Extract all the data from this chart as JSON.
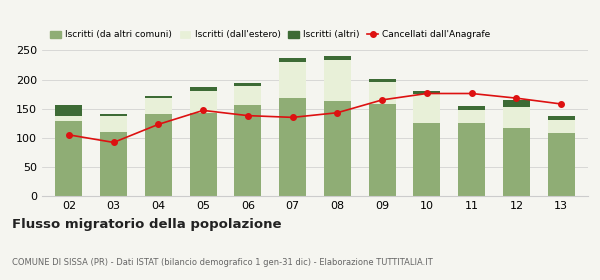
{
  "years": [
    "02",
    "03",
    "04",
    "05",
    "06",
    "07",
    "08",
    "09",
    "10",
    "11",
    "12",
    "13"
  ],
  "iscritti_altri_comuni": [
    128,
    110,
    140,
    142,
    156,
    168,
    163,
    158,
    125,
    125,
    117,
    108
  ],
  "iscritti_estero": [
    10,
    28,
    28,
    38,
    33,
    62,
    70,
    38,
    50,
    22,
    35,
    22
  ],
  "iscritti_altri": [
    18,
    2,
    4,
    8,
    5,
    7,
    8,
    5,
    5,
    7,
    12,
    8
  ],
  "cancellati": [
    105,
    92,
    123,
    147,
    138,
    135,
    143,
    165,
    176,
    176,
    168,
    158
  ],
  "color_altri_comuni": "#8fad75",
  "color_estero": "#e8f0d8",
  "color_altri": "#3d6b35",
  "color_cancellati": "#dd1111",
  "ylim": [
    0,
    250
  ],
  "yticks": [
    0,
    50,
    100,
    150,
    200,
    250
  ],
  "title": "Flusso migratorio della popolazione",
  "subtitle": "COMUNE DI SISSA (PR) - Dati ISTAT (bilancio demografico 1 gen-31 dic) - Elaborazione TUTTITALIA.IT",
  "legend_labels": [
    "Iscritti (da altri comuni)",
    "Iscritti (dall'estero)",
    "Iscritti (altri)",
    "Cancellati dall'Anagrafe"
  ],
  "bg_color": "#f5f5f0",
  "grid_color": "#cccccc"
}
